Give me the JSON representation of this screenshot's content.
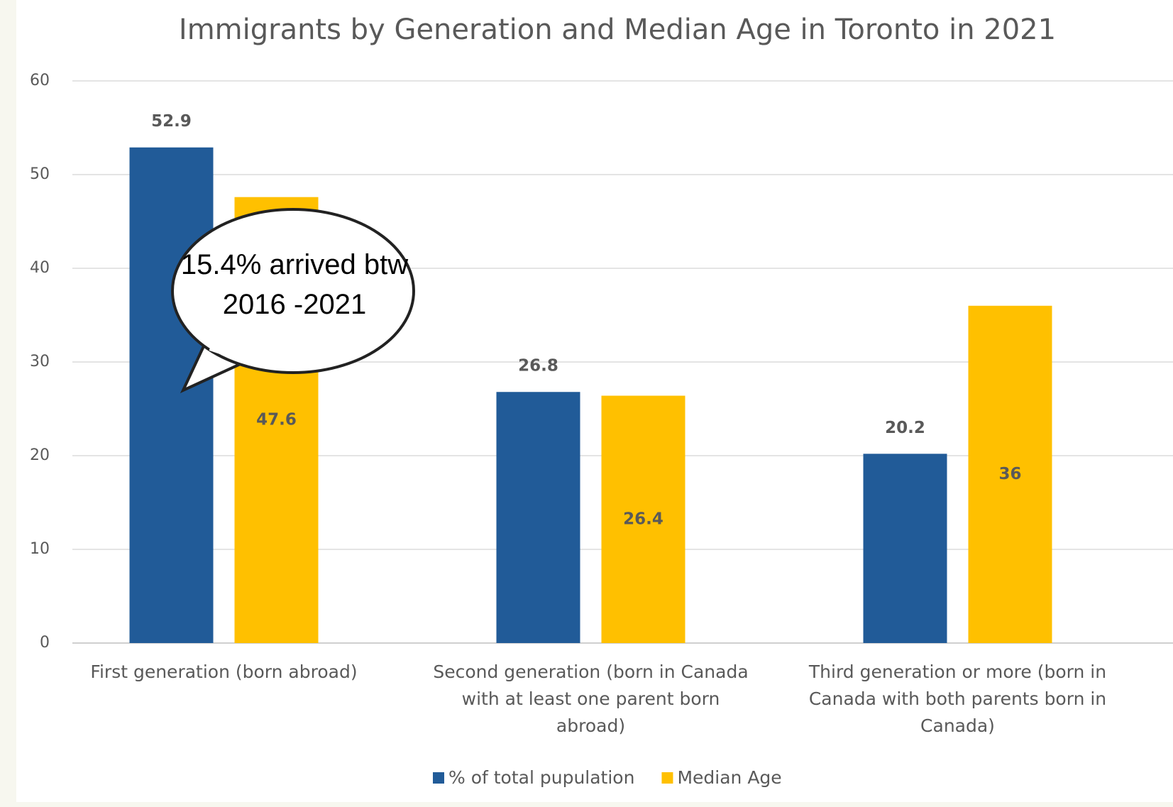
{
  "chart_data": {
    "type": "bar",
    "title": "Immigrants by Generation and Median Age in Toronto in 2021",
    "categories": [
      "First generation (born abroad)",
      "Second generation (born in Canada with at least one parent born abroad)",
      "Third generation or more (born in Canada with both parents born in Canada)"
    ],
    "series": [
      {
        "name": "% of total pupulation",
        "color": "#215b98",
        "values": [
          52.9,
          26.8,
          20.2
        ]
      },
      {
        "name": "Median Age",
        "color": "#ffc000",
        "values": [
          47.6,
          26.4,
          36
        ]
      }
    ],
    "ylim": [
      0,
      60
    ],
    "yticks": [
      0,
      10,
      20,
      30,
      40,
      50,
      60
    ],
    "grid": true,
    "annotation": "15.4% arrived btw 2016 -2021"
  }
}
